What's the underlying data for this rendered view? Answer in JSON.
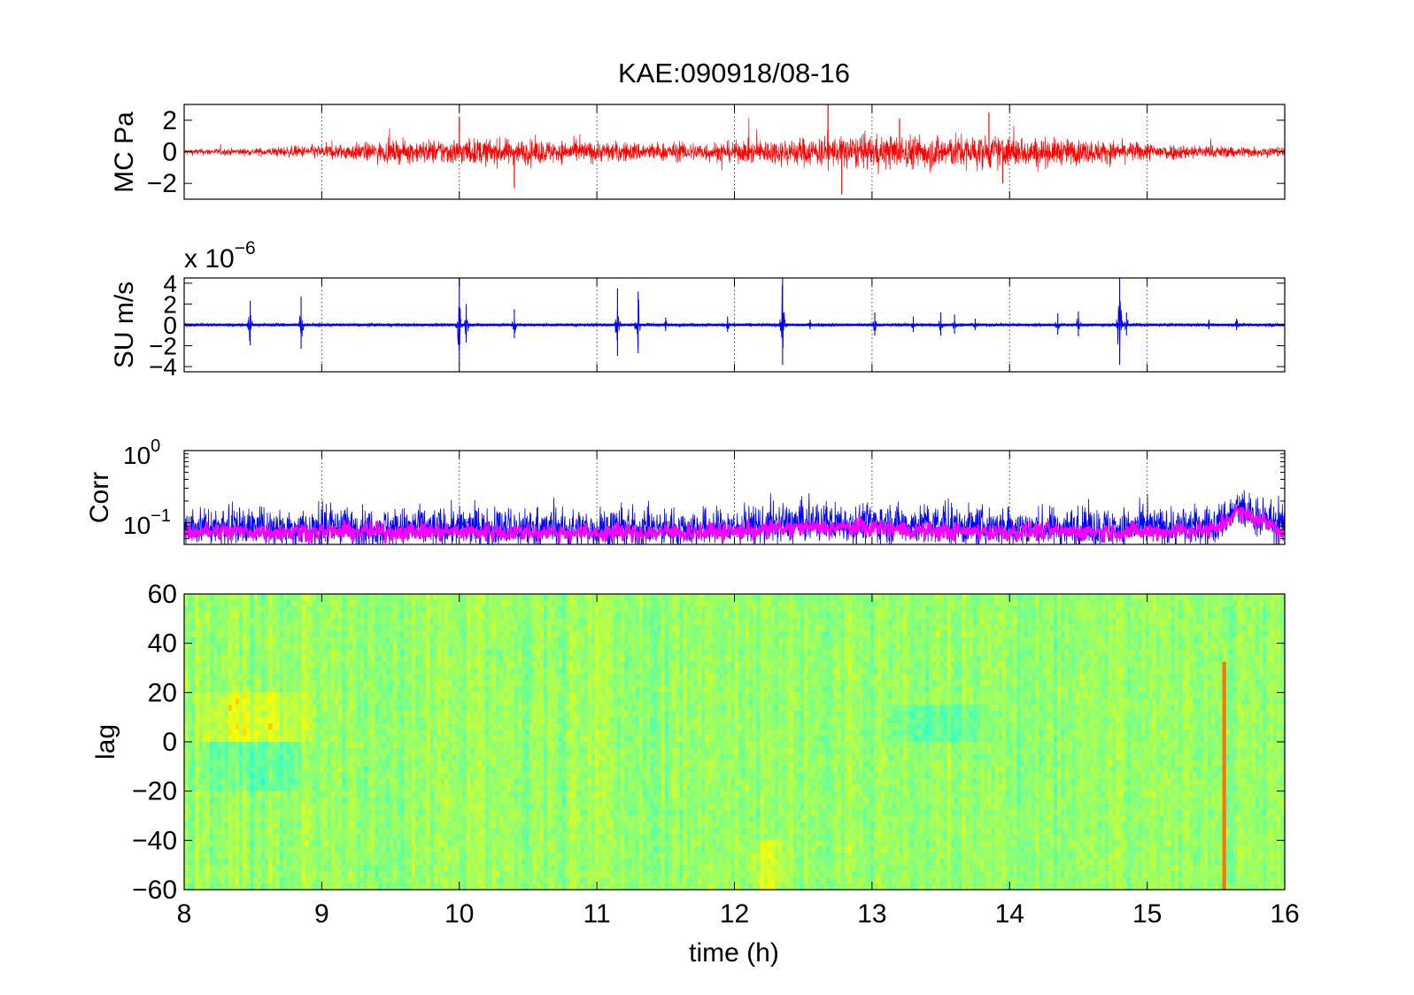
{
  "figure": {
    "title": "KAE:090918/08-16",
    "xlabel": "time (h)"
  },
  "chart_data": [
    {
      "type": "line",
      "ylabel": "MC Pa",
      "xlim": [
        8,
        16
      ],
      "ylim": [
        -3,
        3
      ],
      "yticks": [
        "2",
        "0",
        "−2"
      ],
      "grid": "vertical dotted",
      "series": [
        {
          "color": "#ff0000",
          "x": [
            8,
            8.5,
            9,
            9.5,
            10,
            10.5,
            11,
            11.5,
            12,
            12.5,
            13,
            13.5,
            14,
            14.5,
            15,
            15.5,
            16
          ],
          "amplitude": [
            0.3,
            0.35,
            0.7,
            1.0,
            1.3,
            1.2,
            1.0,
            0.9,
            1.0,
            1.4,
            1.6,
            1.7,
            1.5,
            1.2,
            0.9,
            0.6,
            0.5
          ],
          "peaks": [
            [
              10.0,
              2.2
            ],
            [
              10.4,
              -2.3
            ],
            [
              12.68,
              3.0
            ],
            [
              12.78,
              -2.7
            ],
            [
              13.2,
              2.1
            ],
            [
              13.85,
              2.5
            ],
            [
              13.95,
              -2.0
            ]
          ]
        }
      ]
    },
    {
      "type": "line",
      "ylabel": "SU m/s",
      "multiplier": "x 10",
      "multiplier_exponent": "−6",
      "xlim": [
        8,
        16
      ],
      "ylim": [
        -4.5,
        4.5
      ],
      "yticks": [
        "4",
        "2",
        "0",
        "−2",
        "−4"
      ],
      "grid": "vertical dotted",
      "series": [
        {
          "color": "#0000ff",
          "baseline_noise": 0.15,
          "bursts": [
            [
              8.48,
              2.3
            ],
            [
              8.85,
              2.7
            ],
            [
              10.0,
              4.5
            ],
            [
              10.05,
              2.0
            ],
            [
              10.4,
              1.5
            ],
            [
              11.15,
              3.5
            ],
            [
              11.3,
              3.2
            ],
            [
              11.5,
              0.7
            ],
            [
              11.95,
              0.8
            ],
            [
              12.35,
              4.5
            ],
            [
              12.55,
              0.5
            ],
            [
              13.02,
              1.2
            ],
            [
              13.3,
              0.8
            ],
            [
              13.5,
              1.2
            ],
            [
              13.6,
              1.0
            ],
            [
              13.75,
              0.6
            ],
            [
              14.35,
              1.1
            ],
            [
              14.5,
              1.3
            ],
            [
              14.8,
              4.5
            ],
            [
              14.85,
              1.2
            ],
            [
              15.45,
              0.5
            ],
            [
              15.65,
              0.6
            ]
          ]
        }
      ]
    },
    {
      "type": "line",
      "ylabel": "Corr",
      "yscale": "log",
      "ylim": [
        0.05,
        1
      ],
      "yticks": [
        "10",
        "10"
      ],
      "ytick_exponents": [
        "0",
        "−1"
      ],
      "grid": "vertical dotted",
      "series": [
        {
          "color": "#0000ff",
          "x": [
            8,
            9,
            10,
            11,
            12,
            12.5,
            13,
            13.5,
            14,
            15,
            15.5,
            15.65,
            16
          ],
          "y": [
            0.09,
            0.085,
            0.085,
            0.08,
            0.085,
            0.1,
            0.1,
            0.09,
            0.085,
            0.085,
            0.09,
            0.15,
            0.085
          ]
        },
        {
          "color": "#ff00ff",
          "x": [
            8,
            9,
            10,
            11,
            12,
            12.5,
            13,
            13.5,
            14,
            15,
            15.5,
            15.65,
            16
          ],
          "y": [
            0.075,
            0.075,
            0.075,
            0.072,
            0.075,
            0.085,
            0.085,
            0.075,
            0.075,
            0.075,
            0.08,
            0.14,
            0.075
          ]
        }
      ]
    },
    {
      "type": "heatmap",
      "ylabel": "lag",
      "xlim": [
        8,
        16
      ],
      "ylim": [
        -60,
        60
      ],
      "yticks": [
        "60",
        "40",
        "20",
        "0",
        "−20",
        "−40",
        "−60"
      ],
      "xticks": [
        "8",
        "9",
        "10",
        "11",
        "12",
        "13",
        "14",
        "15",
        "16"
      ],
      "colormap": [
        "#00ffff",
        "#40ffbf",
        "#80ff80",
        "#c0ff40",
        "#ffff00",
        "#ff8000",
        "#ff0000"
      ],
      "dominant_color": "#80e060",
      "features": [
        {
          "x": [
            8.0,
            9.0
          ],
          "lag": [
            0,
            20
          ],
          "value": "high"
        },
        {
          "x": [
            8.0,
            9.0
          ],
          "lag": [
            -20,
            0
          ],
          "value": "low"
        },
        {
          "x": [
            13.0,
            14.0
          ],
          "lag": [
            0,
            15
          ],
          "value": "low"
        },
        {
          "x": [
            12.1,
            12.4
          ],
          "lag": [
            -60,
            -40
          ],
          "value": "high"
        }
      ]
    }
  ]
}
